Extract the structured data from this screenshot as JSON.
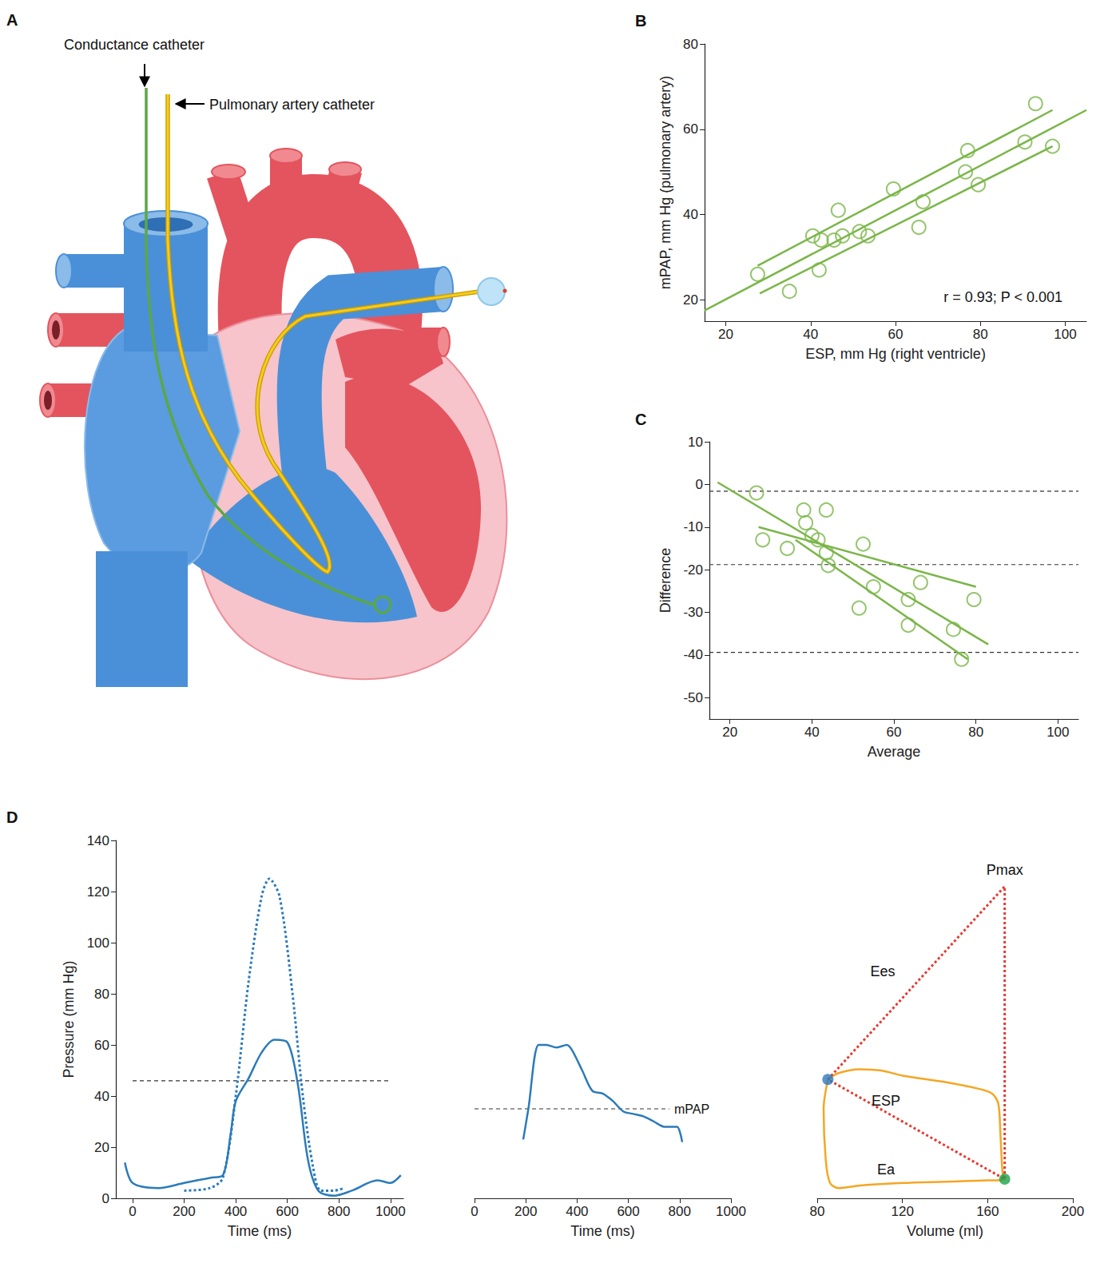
{
  "diagram": {
    "panel": "A",
    "labels": [
      "Conductance catheter",
      "Pulmonary artery catheter"
    ]
  },
  "chart_data": [
    {
      "panel": "B",
      "type": "scatter",
      "xlabel": "ESP, mm Hg (right ventricle)",
      "ylabel": "mPAP, mm Hg (pulmonary artery)",
      "annotations": [
        "r = 0.93; P < 0.001"
      ],
      "xlim": [
        15,
        105
      ],
      "xticks": [
        20,
        40,
        60,
        80,
        100
      ],
      "ylim": [
        15,
        80
      ],
      "yticks": [
        20,
        40,
        60,
        80
      ],
      "series": [
        {
          "type": "scatter",
          "marker": "circle-open",
          "color": "#7ab648",
          "x": [
            27.5,
            35,
            40.5,
            42,
            42.5,
            45.5,
            46.5,
            47.5,
            51.5,
            53.5,
            59.5,
            65.5,
            66.5,
            76.5,
            77,
            79.5,
            90.5,
            93,
            97
          ],
          "values": [
            26,
            22,
            35,
            27,
            34,
            34,
            41,
            35,
            36,
            35,
            46,
            37,
            43,
            50,
            55,
            47,
            57,
            66,
            56
          ]
        },
        {
          "type": "line",
          "line_style": "solid",
          "color": "#7ab648",
          "x": [
            15,
            105
          ],
          "values": [
            17.5,
            64.5
          ]
        },
        {
          "type": "line",
          "line_style": "solid",
          "color": "#7ab648",
          "x": [
            27.5,
            97
          ],
          "values": [
            28,
            64.5
          ]
        },
        {
          "type": "line",
          "line_style": "solid",
          "color": "#7ab648",
          "x": [
            28,
            97
          ],
          "values": [
            21.5,
            56
          ]
        }
      ]
    },
    {
      "panel": "C",
      "type": "scatter",
      "xlabel": "Average",
      "ylabel": "Difference",
      "xlim": [
        15,
        105
      ],
      "xticks": [
        20,
        40,
        60,
        80,
        100
      ],
      "ylim": [
        -55,
        10
      ],
      "yticks": [
        -50,
        -40,
        -30,
        -20,
        -10,
        0,
        10
      ],
      "series": [
        {
          "type": "scatter",
          "marker": "circle-open",
          "color": "#7ab648",
          "x": [
            26.5,
            28,
            34,
            38,
            38.5,
            40,
            41.5,
            43.5,
            43.5,
            44,
            51.5,
            52.5,
            55,
            63.5,
            63.5,
            66.5,
            74.5,
            76.5,
            79.5
          ],
          "values": [
            -2,
            -13,
            -15,
            -6,
            -9,
            -12,
            -13,
            -6,
            -16,
            -19,
            -29,
            -14,
            -24,
            -27,
            -33,
            -23,
            -34,
            -41,
            -27
          ]
        },
        {
          "type": "line",
          "line_style": "solid",
          "color": "#7ab648",
          "x": [
            17,
            83
          ],
          "values": [
            0.5,
            -37.5
          ]
        },
        {
          "type": "line",
          "line_style": "solid",
          "color": "#7ab648",
          "x": [
            27,
            80
          ],
          "values": [
            -10,
            -24
          ]
        },
        {
          "type": "line",
          "line_style": "solid",
          "color": "#7ab648",
          "x": [
            36,
            78
          ],
          "values": [
            -13,
            -41
          ]
        },
        {
          "type": "line",
          "line_style": "dashed",
          "color": "#333333",
          "x": [
            15,
            105
          ],
          "values": [
            -1.6,
            -1.6
          ]
        },
        {
          "type": "line",
          "line_style": "dashed",
          "color": "#333333",
          "x": [
            15,
            105
          ],
          "values": [
            -18.8,
            -18.8
          ]
        },
        {
          "type": "line",
          "line_style": "dashed",
          "color": "#333333",
          "x": [
            15,
            105
          ],
          "values": [
            -39.4,
            -39.4
          ]
        }
      ]
    },
    {
      "panel": "D",
      "type": "line",
      "xlabel": "Time (ms)",
      "ylabel": "Pressure (mm Hg)",
      "xlim": [
        -65,
        1050
      ],
      "xticks": [
        0,
        200,
        400,
        600,
        800,
        1000
      ],
      "ylim": [
        0,
        140
      ],
      "yticks": [
        0,
        20,
        40,
        60,
        80,
        100,
        120,
        140
      ],
      "series": [
        {
          "type": "line",
          "line_style": "solid",
          "color": "#2b7bba",
          "x": [
            -30,
            0,
            100,
            200,
            300,
            350,
            380,
            400,
            450,
            500,
            550,
            600,
            640,
            680,
            720,
            780,
            850,
            950,
            1000,
            1040
          ],
          "values": [
            14,
            6,
            4,
            6,
            8,
            9,
            25,
            38,
            47,
            57,
            62,
            61,
            45,
            15,
            3,
            1,
            3,
            7,
            6,
            9
          ]
        },
        {
          "type": "line",
          "line_style": "dotted",
          "color": "#2b7bba",
          "x": [
            200,
            300,
            350,
            400,
            450,
            500,
            530,
            570,
            620,
            660,
            700,
            730,
            780,
            820
          ],
          "values": [
            3,
            4,
            8,
            40,
            85,
            118,
            125,
            118,
            80,
            40,
            12,
            3,
            3,
            4
          ]
        },
        {
          "type": "line",
          "line_style": "dashed",
          "color": "#333333",
          "x": [
            0,
            1000
          ],
          "values": [
            46,
            46
          ]
        }
      ]
    },
    {
      "type": "line",
      "xlabel": "Time (ms)",
      "tick_labels": "x",
      "annotations": [
        "mPAP"
      ],
      "xlim": [
        0,
        1000
      ],
      "xticks": [
        0,
        200,
        400,
        600,
        800,
        1000
      ],
      "ylim": [
        0,
        140
      ],
      "series": [
        {
          "type": "line",
          "line_style": "solid",
          "color": "#2b7bba",
          "x": [
            190,
            210,
            250,
            280,
            320,
            360,
            380,
            420,
            460,
            500,
            540,
            580,
            620,
            660,
            700,
            740,
            770,
            790,
            810
          ],
          "values": [
            23,
            35,
            60,
            60,
            59,
            60,
            58,
            50,
            42,
            41,
            38,
            34,
            33,
            32,
            30,
            28,
            28,
            28,
            22
          ]
        },
        {
          "type": "line",
          "line_style": "dashed",
          "color": "#333333",
          "x": [
            0,
            760
          ],
          "values": [
            35,
            35
          ]
        }
      ]
    },
    {
      "type": "line",
      "xlabel": "Volume (ml)",
      "tick_labels": "x",
      "annotations": [
        "Pmax",
        "Ees",
        "ESP",
        "Ea"
      ],
      "xlim": [
        80,
        200
      ],
      "xticks": [
        80,
        120,
        160,
        200
      ],
      "ylim": [
        0,
        140
      ],
      "series": [
        {
          "type": "line",
          "line_style": "solid",
          "color": "#f5a623",
          "x": [
            85,
            90,
            100,
            110,
            120,
            140,
            155,
            162,
            165,
            166,
            167,
            168,
            160,
            140,
            120,
            100,
            90,
            86,
            84,
            83,
            85
          ],
          "values": [
            46.5,
            49,
            50.5,
            50,
            48,
            45.5,
            43,
            41,
            37,
            25,
            10,
            7.5,
            7,
            6.5,
            6,
            5,
            4,
            6,
            15,
            35,
            46.5
          ]
        },
        {
          "type": "line",
          "line_style": "dotted",
          "color": "#e8382f",
          "x": [
            85,
            168,
            168,
            85
          ],
          "values": [
            46.5,
            122,
            7.5,
            46.5
          ]
        },
        {
          "type": "scatter",
          "marker": "circle",
          "colors": [
            "#2b7bba",
            "#1aa34a"
          ],
          "x": [
            85,
            168
          ],
          "values": [
            46.5,
            7.5
          ]
        }
      ]
    }
  ]
}
